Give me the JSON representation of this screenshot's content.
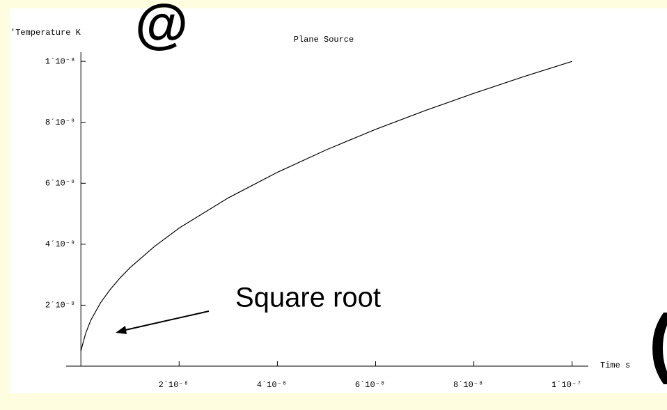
{
  "chart_data": {
    "type": "line",
    "title": "Plane Source",
    "y_label": "'Temperature    K",
    "x_label": "Time    s",
    "annotation": "Square root",
    "glyphs": [
      "@",
      "("
    ],
    "x": [
      0,
      5e-10,
      1e-09,
      2e-09,
      4e-09,
      6e-09,
      8e-09,
      1e-08,
      1.5e-08,
      2e-08,
      3e-08,
      4e-08,
      5e-08,
      6e-08,
      7e-08,
      8e-08,
      9e-08,
      1e-07
    ],
    "series": [
      {
        "name": "Temperature",
        "color": "#000000",
        "values": [
          5e-10,
          8e-10,
          1.09e-09,
          1.5e-09,
          2.08e-09,
          2.52e-09,
          2.9e-09,
          3.23e-09,
          3.93e-09,
          4.53e-09,
          5.52e-09,
          6.36e-09,
          7.1e-09,
          7.77e-09,
          8.38e-09,
          8.95e-09,
          9.49e-09,
          1e-08
        ]
      }
    ],
    "xlim": [
      -3e-09,
      1.033e-07
    ],
    "ylim": [
      0,
      1.03e-08
    ],
    "xticks": [
      {
        "value": 2e-08,
        "label": "2´10⁻⁸"
      },
      {
        "value": 4e-08,
        "label": "4´10⁻⁸"
      },
      {
        "value": 6e-08,
        "label": "6´10⁻⁸"
      },
      {
        "value": 8e-08,
        "label": "8´10⁻⁸"
      },
      {
        "value": 1e-07,
        "label": "1´10⁻⁷"
      }
    ],
    "yticks": [
      {
        "value": 2e-09,
        "label": "2´10⁻⁹"
      },
      {
        "value": 4e-09,
        "label": "4´10⁻⁹"
      },
      {
        "value": 6e-09,
        "label": "6´10⁻⁹"
      },
      {
        "value": 8e-09,
        "label": "8´10⁻⁹"
      },
      {
        "value": 1e-08,
        "label": "1´10⁻⁸"
      }
    ]
  }
}
